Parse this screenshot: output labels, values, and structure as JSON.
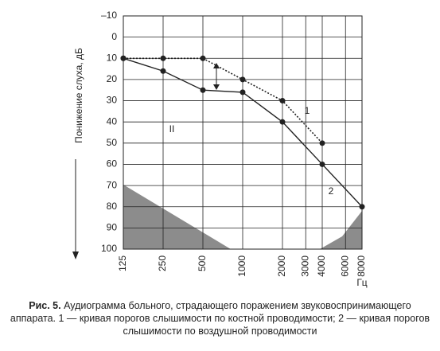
{
  "chart_data": {
    "type": "line",
    "ylabel": "Понижение слуха, дБ",
    "xlabel": "Гц",
    "xscale": "log",
    "xlim": [
      125,
      8000
    ],
    "xticks": [
      125,
      250,
      500,
      1000,
      2000,
      3000,
      4000,
      6000,
      8000
    ],
    "ylim": [
      -10,
      100
    ],
    "yticks": [
      {
        "value": -10,
        "label": "–10"
      },
      0,
      10,
      20,
      30,
      40,
      50,
      60,
      70,
      80,
      90,
      100
    ],
    "y_inverted": true,
    "grid": true,
    "series": [
      {
        "name": "1",
        "color": "#222222",
        "dashed": true,
        "x": [
          125,
          250,
          500,
          1000,
          2000,
          4000
        ],
        "values": [
          10,
          10,
          10,
          20,
          30,
          50
        ]
      },
      {
        "name": "2",
        "color": "#222222",
        "dashed": false,
        "x": [
          125,
          250,
          500,
          1000,
          2000,
          4000,
          8000
        ],
        "values": [
          10,
          16,
          25,
          26,
          40,
          60,
          80
        ]
      }
    ],
    "annotations": [
      "II"
    ],
    "caption_label": "Рис. 5.",
    "caption": "Аудиограмма больного, страдающего поражением звуковоспринимающего аппарата. 1 — кривая порогов слышимости по костной проводимости; 2 — кривая порогов слышимости по воздушной проводимости"
  }
}
